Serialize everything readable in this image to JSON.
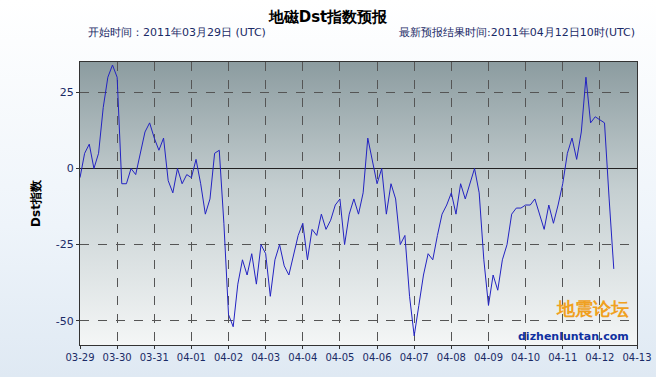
{
  "chart_data": {
    "type": "line",
    "title": "地磁Dst指数预报",
    "subtitle": [
      "开始时间：2011年03月29日 (UTC)",
      "最新预报结果时间:2011年04月12日10时(UTC)"
    ],
    "y_label": "Dst指数",
    "annotations": [
      "地震论坛",
      "dizhenluntan.com"
    ],
    "color": "#2323c2",
    "grid": true,
    "categories": [
      "03-29",
      null,
      null,
      null,
      null,
      null,
      null,
      null,
      "03-30",
      null,
      null,
      null,
      null,
      null,
      null,
      null,
      "03-31",
      null,
      null,
      null,
      null,
      null,
      null,
      null,
      "04-01",
      null,
      null,
      null,
      null,
      null,
      null,
      null,
      "04-02",
      null,
      null,
      null,
      null,
      null,
      null,
      null,
      "04-03",
      null,
      null,
      null,
      null,
      null,
      null,
      null,
      "04-04",
      null,
      null,
      null,
      null,
      null,
      null,
      null,
      "04-05",
      null,
      null,
      null,
      null,
      null,
      null,
      null,
      "04-06",
      null,
      null,
      null,
      null,
      null,
      null,
      null,
      "04-07",
      null,
      null,
      null,
      null,
      null,
      null,
      null,
      "04-08",
      null,
      null,
      null,
      null,
      null,
      null,
      null,
      "04-09",
      null,
      null,
      null,
      null,
      null,
      null,
      null,
      "04-10",
      null,
      null,
      null,
      null,
      null,
      null,
      null,
      "04-11",
      null,
      null,
      null,
      null,
      null,
      null,
      null,
      "04-12",
      null,
      null,
      null,
      null,
      null,
      null,
      null,
      "04-13"
    ],
    "values": [
      -3,
      5,
      8,
      0,
      5,
      20,
      30,
      34,
      30,
      -5,
      -5,
      0,
      -2,
      5,
      12,
      15,
      10,
      6,
      10,
      -4,
      -8,
      0,
      -5,
      -2,
      -3,
      3,
      -5,
      -15,
      -10,
      5,
      6,
      -18,
      -48,
      -52,
      -38,
      -30,
      -35,
      -28,
      -38,
      -25,
      -28,
      -42,
      -30,
      -25,
      -32,
      -35,
      -28,
      -22,
      -18,
      -30,
      -20,
      -22,
      -15,
      -20,
      -17,
      -12,
      -10,
      -25,
      -15,
      -10,
      -15,
      -8,
      10,
      3,
      -5,
      0,
      -15,
      -5,
      -10,
      -25,
      -22,
      -42,
      -55,
      -45,
      -35,
      -28,
      -30,
      -22,
      -15,
      -12,
      -8,
      -15,
      -5,
      -10,
      -5,
      0,
      -8,
      -30,
      -45,
      -35,
      -40,
      -30,
      -25,
      -15,
      -13,
      -13,
      -12,
      -12,
      -10,
      -15,
      -20,
      -12,
      -18,
      -12,
      -5,
      5,
      10,
      3,
      12,
      30,
      15,
      17,
      16,
      15,
      -10,
      -33,
      null,
      null,
      null,
      null,
      null
    ],
    "ylim": [
      -58,
      35
    ],
    "yticks": [
      25,
      0,
      -25,
      -50
    ]
  }
}
